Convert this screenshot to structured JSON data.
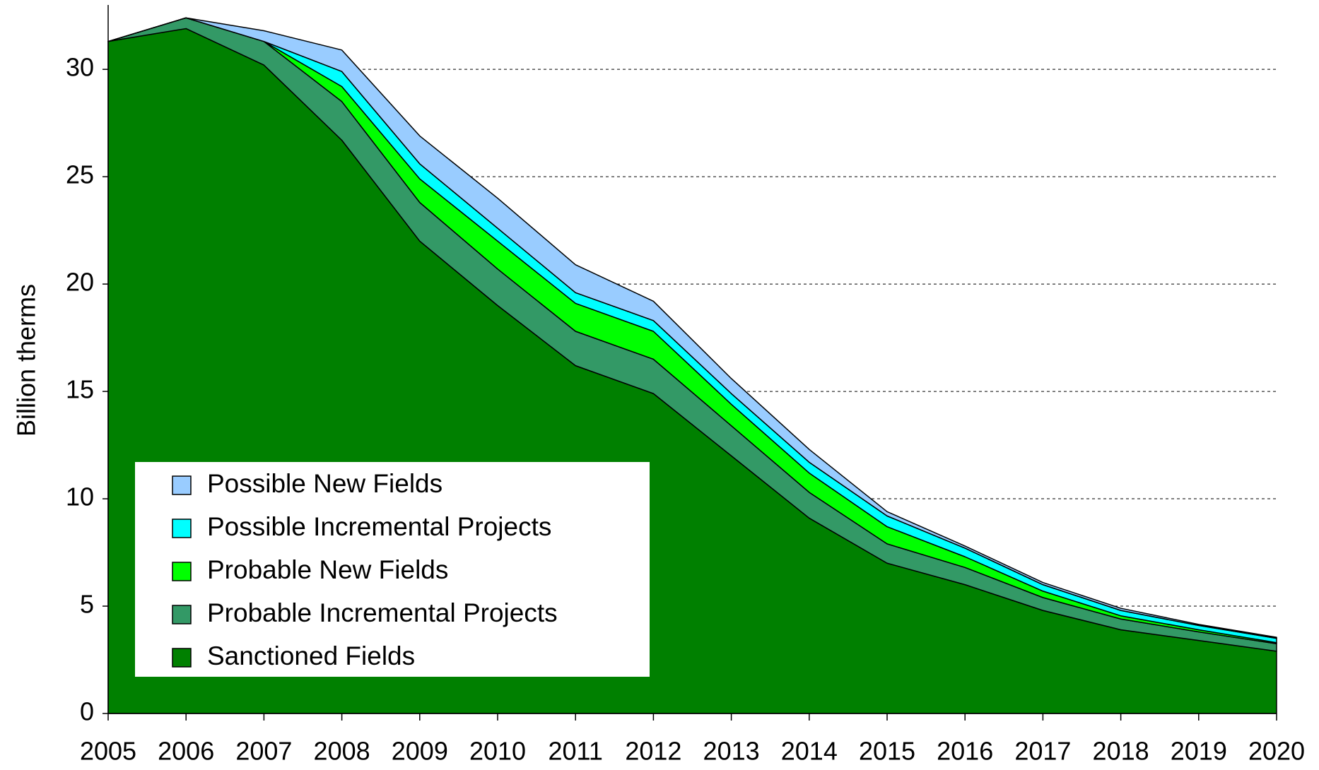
{
  "chart_data": {
    "type": "area",
    "stacked": true,
    "ylabel": "Billion therms",
    "categories": [
      "2005",
      "2006",
      "2007",
      "2008",
      "2009",
      "2010",
      "2011",
      "2012",
      "2013",
      "2014",
      "2015",
      "2016",
      "2017",
      "2018",
      "2019",
      "2020"
    ],
    "series": [
      {
        "name": "Sanctioned Fields",
        "color": "#008000",
        "values": [
          31.3,
          31.9,
          30.2,
          26.7,
          22.0,
          19.0,
          16.2,
          14.9,
          12.0,
          9.1,
          7.0,
          6.0,
          4.8,
          3.9,
          3.4,
          2.9
        ]
      },
      {
        "name": "Probable Incremental Projects",
        "color": "#339966",
        "values": [
          0,
          0.5,
          1.1,
          1.8,
          1.8,
          1.7,
          1.6,
          1.6,
          1.4,
          1.2,
          0.9,
          0.8,
          0.6,
          0.5,
          0.4,
          0.35
        ]
      },
      {
        "name": "Probable New Fields",
        "color": "#00ff00",
        "values": [
          0,
          0,
          0,
          0.7,
          1.1,
          1.3,
          1.3,
          1.3,
          1.0,
          0.9,
          0.8,
          0.5,
          0.3,
          0.15,
          0.1,
          0.05
        ]
      },
      {
        "name": "Possible Incremental Projects",
        "color": "#00ffff",
        "values": [
          0,
          0,
          0,
          0.7,
          0.7,
          0.6,
          0.5,
          0.5,
          0.5,
          0.5,
          0.5,
          0.4,
          0.3,
          0.25,
          0.2,
          0.2
        ]
      },
      {
        "name": "Possible New Fields",
        "color": "#99ccff",
        "values": [
          0,
          0,
          0.5,
          1.0,
          1.3,
          1.4,
          1.3,
          0.9,
          0.7,
          0.6,
          0.2,
          0.1,
          0.1,
          0.1,
          0.05,
          0.05
        ]
      }
    ],
    "ylim": [
      0,
      33
    ],
    "yticks": [
      0,
      5,
      10,
      15,
      20,
      25,
      30
    ],
    "grid": true,
    "legend": "lower left"
  }
}
